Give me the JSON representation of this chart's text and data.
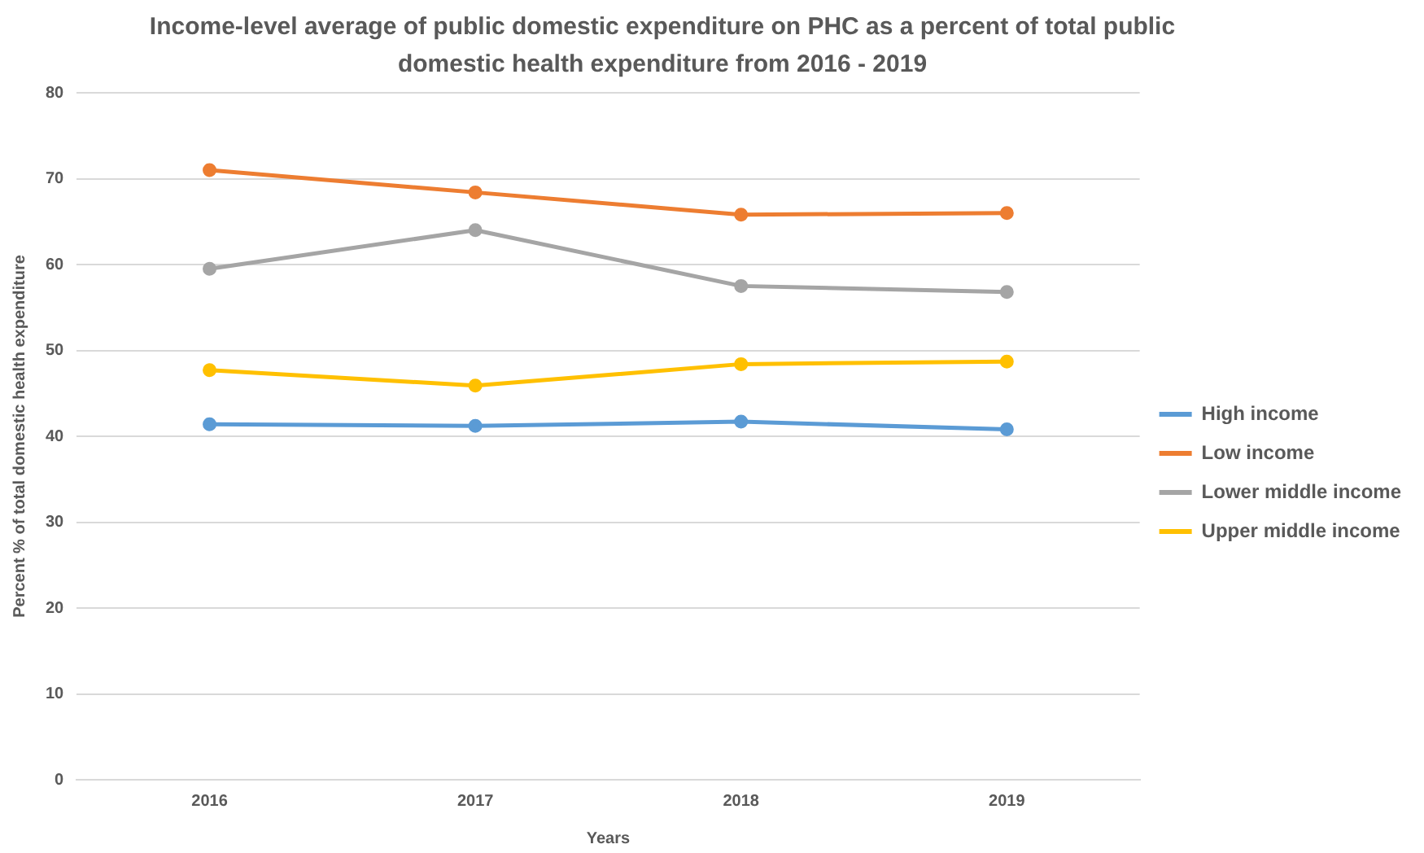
{
  "chart_data": {
    "type": "line",
    "title": "Income-level average of public domestic expenditure on PHC as a percent of total public domestic health expenditure from 2016 - 2019",
    "xlabel": "Years",
    "ylabel": "Percent % of total domestic health expenditure",
    "categories": [
      "2016",
      "2017",
      "2018",
      "2019"
    ],
    "series": [
      {
        "name": "High income",
        "color": "#5b9bd5",
        "values": [
          41.4,
          41.2,
          41.7,
          40.8
        ]
      },
      {
        "name": "Low income",
        "color": "#ed7d31",
        "values": [
          71.0,
          68.4,
          65.8,
          66.0
        ]
      },
      {
        "name": "Lower middle income",
        "color": "#a5a5a5",
        "values": [
          59.5,
          64.0,
          57.5,
          56.8
        ]
      },
      {
        "name": "Upper middle income",
        "color": "#ffc000",
        "values": [
          47.7,
          45.9,
          48.4,
          48.7
        ]
      }
    ],
    "ylim": [
      0,
      80
    ],
    "yticks": [
      0,
      10,
      20,
      30,
      40,
      50,
      60,
      70,
      80
    ],
    "grid": "y",
    "legend": "right",
    "marker": "circle",
    "line_style": "solid"
  }
}
